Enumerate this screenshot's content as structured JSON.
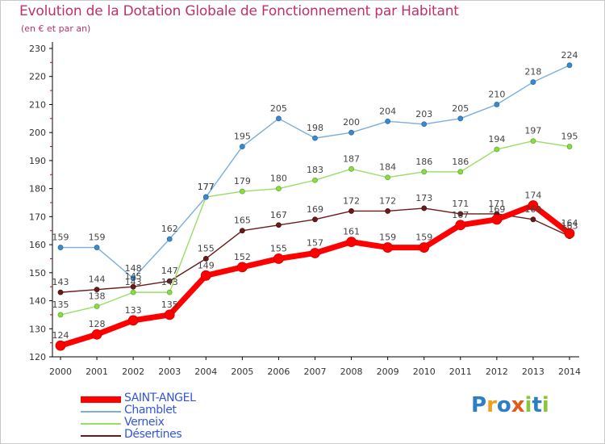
{
  "chart_data": {
    "type": "line",
    "title": "Evolution de la Dotation Globale de Fonctionnement par Habitant",
    "subtitle": "(en € et par an)",
    "xlabel": "",
    "ylabel": "",
    "ylim": [
      120,
      230
    ],
    "yticks": [
      120,
      130,
      140,
      150,
      160,
      170,
      180,
      190,
      200,
      210,
      220,
      230
    ],
    "grid": false,
    "categories": [
      "2000",
      "2001",
      "2002",
      "2003",
      "2004",
      "2005",
      "2006",
      "2007",
      "2008",
      "2009",
      "2010",
      "2011",
      "2012",
      "2013",
      "2014"
    ],
    "series": [
      {
        "name": "Désertines",
        "color": "#6b1a1a",
        "values": [
          143,
          144,
          145,
          147,
          155,
          165,
          167,
          169,
          172,
          172,
          173,
          171,
          171,
          169,
          163
        ]
      },
      {
        "name": "Verneix",
        "color": "#99dd66",
        "values": [
          135,
          138,
          143,
          143,
          177,
          179,
          180,
          183,
          187,
          184,
          186,
          186,
          194,
          197,
          195
        ]
      },
      {
        "name": "Chamblet",
        "color": "#7aaedc",
        "values": [
          159,
          159,
          148,
          162,
          177,
          195,
          205,
          198,
          200,
          204,
          203,
          205,
          210,
          218,
          224
        ]
      },
      {
        "name": "SAINT-ANGEL",
        "color": "#ff0000",
        "values": [
          124,
          128,
          133,
          135,
          149,
          152,
          155,
          157,
          161,
          159,
          159,
          167,
          169,
          174,
          164
        ]
      }
    ],
    "legend": [
      "SAINT-ANGEL",
      "Chamblet",
      "Verneix",
      "Désertines"
    ],
    "legend_position": "bottom-left"
  },
  "brand": {
    "letters": [
      "P",
      "r",
      "o",
      "x",
      "i",
      "t",
      "i"
    ]
  }
}
